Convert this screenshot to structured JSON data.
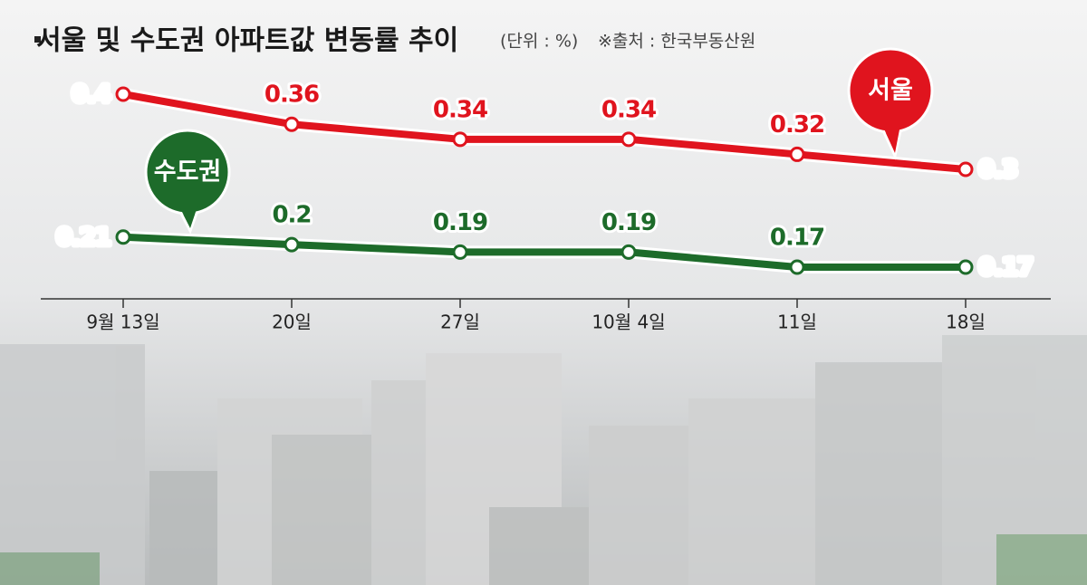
{
  "chart_data": {
    "type": "line",
    "title": "서울 및 수도권 아파트값 변동률 추이",
    "subtitle": "(단위 : %)",
    "source": "※출처 : 한국부동산원",
    "categories": [
      "9월 13일",
      "20일",
      "27일",
      "10월 4일",
      "11일",
      "18일"
    ],
    "series": [
      {
        "name": "서울",
        "color": "#e0141e",
        "values": [
          0.4,
          0.36,
          0.34,
          0.34,
          0.32,
          0.3
        ]
      },
      {
        "name": "수도권",
        "color": "#1d6b2a",
        "values": [
          0.21,
          0.2,
          0.19,
          0.19,
          0.17,
          0.17
        ]
      }
    ]
  }
}
